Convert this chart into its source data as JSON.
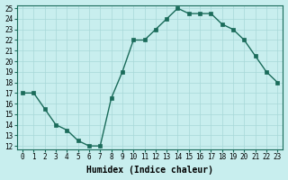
{
  "x": [
    0,
    1,
    2,
    3,
    4,
    5,
    6,
    7,
    8,
    9,
    10,
    11,
    12,
    13,
    14,
    15,
    16,
    17,
    18,
    19,
    20,
    21,
    22,
    23
  ],
  "y": [
    17,
    17,
    15.5,
    14,
    13.5,
    12.5,
    12,
    12,
    16.5,
    19,
    22,
    22,
    23,
    24,
    25,
    24.5,
    24.5,
    24.5,
    23.5,
    23,
    22,
    20.5,
    19,
    18
  ],
  "line_color": "#1a6b5a",
  "marker_color": "#1a6b5a",
  "bg_color": "#c8eeee",
  "grid_color": "#a8d8d8",
  "xlabel": "Humidex (Indice chaleur)",
  "ylim": [
    12,
    25
  ],
  "xlim": [
    -0.5,
    23.5
  ],
  "yticks": [
    12,
    13,
    14,
    15,
    16,
    17,
    18,
    19,
    20,
    21,
    22,
    23,
    24,
    25
  ],
  "xticks": [
    0,
    1,
    2,
    3,
    4,
    5,
    6,
    7,
    8,
    9,
    10,
    11,
    12,
    13,
    14,
    15,
    16,
    17,
    18,
    19,
    20,
    21,
    22,
    23
  ],
  "xtick_labels": [
    "0",
    "1",
    "2",
    "3",
    "4",
    "5",
    "6",
    "7",
    "8",
    "9",
    "10",
    "11",
    "12",
    "13",
    "14",
    "15",
    "16",
    "17",
    "18",
    "19",
    "20",
    "21",
    "22",
    "23"
  ],
  "tick_fontsize": 5.5,
  "xlabel_fontsize": 7.0,
  "marker_size": 2.5,
  "linewidth": 1.0
}
